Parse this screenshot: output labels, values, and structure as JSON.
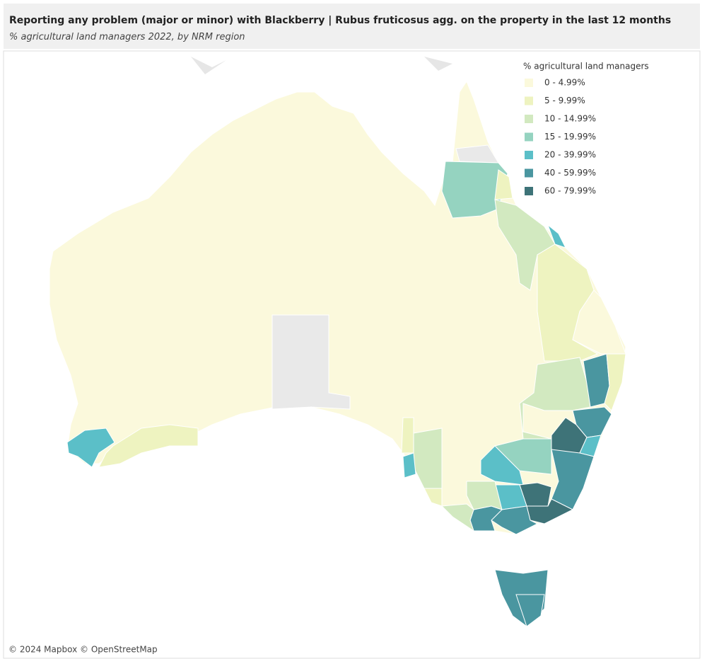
{
  "header": {
    "title": "Reporting any problem (major or minor) with Blackberry | Rubus fruticosus agg. on the property in the last 12 months",
    "subtitle": "% agricultural land managers 2022, by NRM region"
  },
  "legend": {
    "title": "% agricultural land managers",
    "items": [
      {
        "label": "0 - 4.99%",
        "color": "#fbf9dc"
      },
      {
        "label": "5 - 9.99%",
        "color": "#eef3c0"
      },
      {
        "label": "10 - 14.99%",
        "color": "#d2e9c0"
      },
      {
        "label": "15 - 19.99%",
        "color": "#95d3c0"
      },
      {
        "label": "20 - 39.99%",
        "color": "#5bbfc8"
      },
      {
        "label": "40 - 59.99%",
        "color": "#4a96a0"
      },
      {
        "label": "60 - 79.99%",
        "color": "#3e7378"
      }
    ]
  },
  "attribution": "© 2024 Mapbox  © OpenStreetMap"
}
